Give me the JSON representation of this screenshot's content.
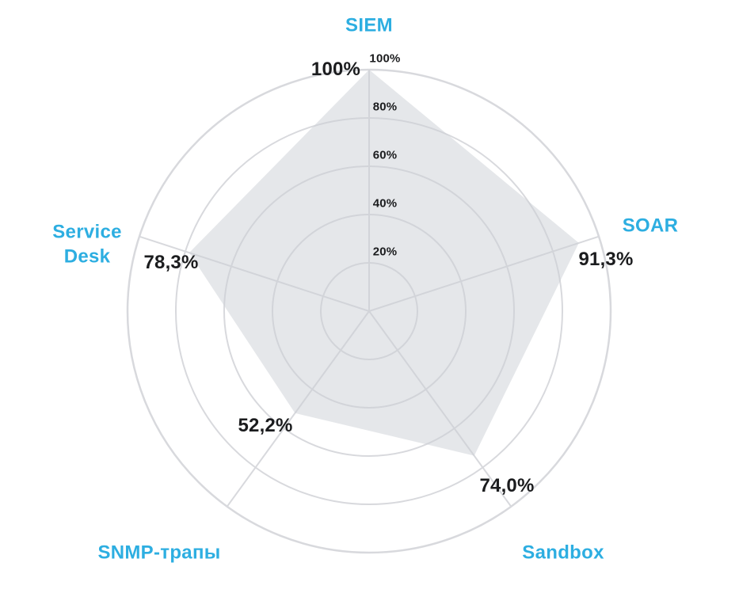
{
  "chart_data": {
    "type": "radar",
    "title": "",
    "categories": [
      "SIEM",
      "SOAR",
      "Sandbox",
      "SNMP-трапы",
      "Service Desk"
    ],
    "values": [
      100,
      91.3,
      74.0,
      52.2,
      78.3
    ],
    "value_labels": [
      "100%",
      "91,3%",
      "74,0%",
      "52,2%",
      "78,3%"
    ],
    "ticks": [
      20,
      40,
      60,
      80,
      100
    ],
    "tick_labels": [
      "20%",
      "40%",
      "60%",
      "80%",
      "100%"
    ],
    "rlim": [
      0,
      100
    ],
    "grid": "circular rings with radial spokes",
    "legend": "none",
    "axes_start": "top, clockwise",
    "colors": {
      "category_label": "#2DAEE1",
      "value_label": "#1B1C1E",
      "tick_label": "#1B1C1E",
      "grid_line": "#D8D9DD",
      "series_fill": "rgba(203,207,213,0.5)",
      "background": "#FFFFFF"
    }
  }
}
